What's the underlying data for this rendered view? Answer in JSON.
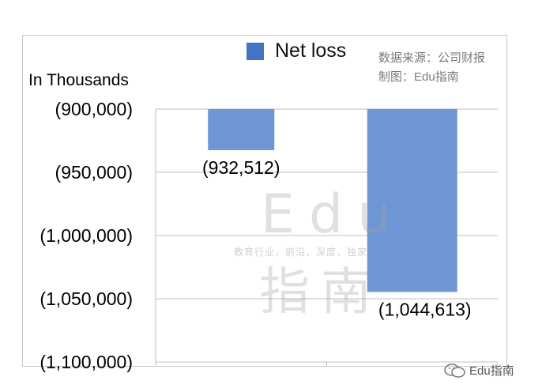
{
  "chart_data": {
    "type": "bar",
    "categories": [
      "",
      ""
    ],
    "series": [
      {
        "name": "Net loss",
        "values": [
          -932512,
          -1044613
        ]
      }
    ],
    "data_labels": [
      "(932,512)",
      "(1,044,613)"
    ],
    "ylabel": "In Thousands",
    "ylim": [
      -1100000,
      -900000
    ],
    "y_ticks": [
      -900000,
      -950000,
      -1000000,
      -1050000,
      -1100000
    ],
    "y_tick_labels": [
      "(900,000)",
      "(950,000)",
      "(1,000,000)",
      "(1,050,000)",
      "(1,100,000)"
    ],
    "grid": true,
    "legend_position": "top",
    "colors": {
      "bar": "#6e96d4",
      "legend": "#4472c4",
      "grid": "#bfbfbf"
    }
  },
  "source": {
    "line1": "数据来源：公司财报",
    "line2": "制图：Edu指南"
  },
  "watermark": {
    "main": "Edu",
    "sub": "教育行业，前沿、深度、独家",
    "cn": "指南"
  },
  "footer": {
    "icon": "wechat-icon",
    "text": "Edu指南"
  }
}
